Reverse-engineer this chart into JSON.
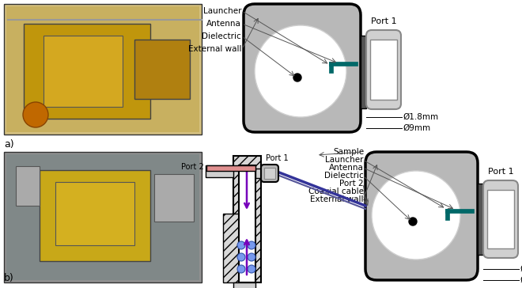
{
  "fig_width": 6.6,
  "fig_height": 3.64,
  "dpi": 100,
  "bg": "#ffffff",
  "gray1": "#b8b8b8",
  "gray2": "#d0d0d0",
  "gray3": "#888888",
  "gray4": "#555555",
  "black": "#000000",
  "white": "#ffffff",
  "teal": "#006868",
  "teal2": "#008080",
  "purple": "#7700bb",
  "blue_dot": "#7799ee",
  "pink": "#e09090",
  "hatch_color": "#aaaaaa",
  "arrow_c": "#555555",
  "label_a": "a)",
  "label_b": "b)",
  "port1": "Port 1",
  "port2": "Port 2",
  "dim1": "Ø1.8mm",
  "dim2": "Ø9mm",
  "top_labels": [
    "Launcher",
    "Antenna",
    "Dielectric",
    "External wall"
  ],
  "bot_labels": [
    "Sample",
    "Launcher",
    "Antenna",
    "Dielectric",
    "Port 2",
    "Coaxial cable",
    "External wall"
  ],
  "fs_lbl": 7.5,
  "fs_port": 8.0,
  "fs_dim": 7.5,
  "fs_ab": 9.0
}
